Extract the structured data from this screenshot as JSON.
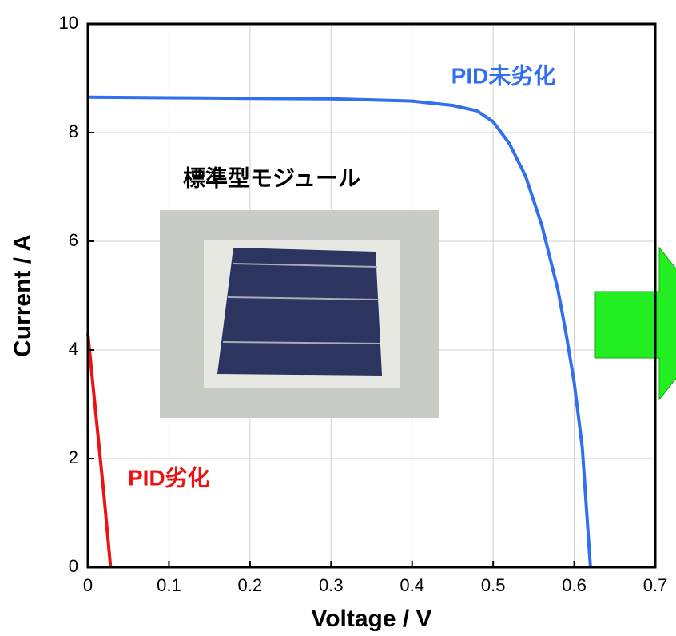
{
  "chart_data": {
    "type": "line",
    "x_label": "Voltage / V",
    "y_label": "Current / A",
    "annotation": "標準型モジュール",
    "xlim": [
      0,
      0.7
    ],
    "xticks": [
      0,
      0.1,
      0.2,
      0.3,
      0.4,
      0.5,
      0.6,
      0.7
    ],
    "ylim": [
      0,
      10
    ],
    "yticks": [
      0,
      2,
      4,
      6,
      8,
      10
    ],
    "grid": true,
    "series": [
      {
        "name": "PID未劣化",
        "color": "#2f6ff0",
        "x": [
          0,
          0.1,
          0.2,
          0.3,
          0.4,
          0.45,
          0.48,
          0.5,
          0.52,
          0.54,
          0.56,
          0.58,
          0.59,
          0.6,
          0.61,
          0.62
        ],
        "values": [
          8.65,
          8.64,
          8.63,
          8.62,
          8.58,
          8.5,
          8.4,
          8.2,
          7.8,
          7.2,
          6.3,
          5.1,
          4.3,
          3.4,
          2.2,
          0
        ]
      },
      {
        "name": "PID劣化",
        "color": "#ee1111",
        "x": [
          0,
          0.01,
          0.02,
          0.028
        ],
        "values": [
          4.3,
          2.8,
          1.3,
          0
        ]
      }
    ]
  }
}
